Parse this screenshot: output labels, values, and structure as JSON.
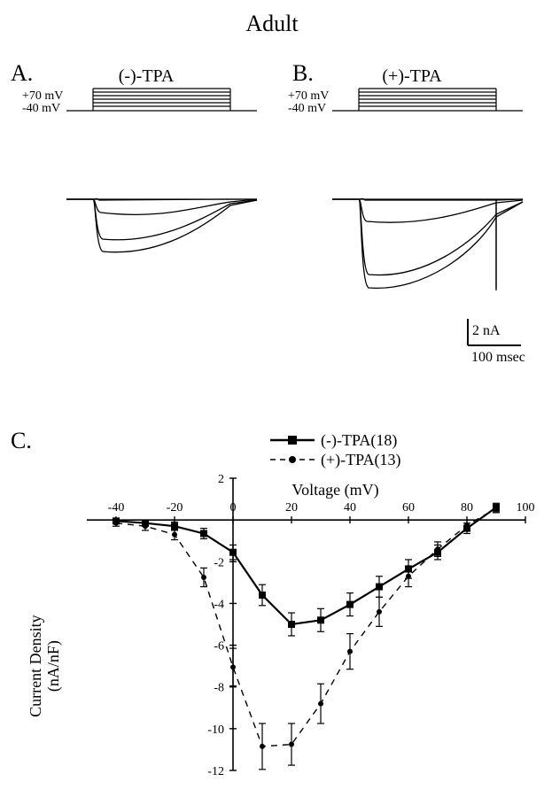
{
  "title": "Adult",
  "panels": {
    "A": {
      "letter": "A.",
      "label": "(-)-TPA",
      "v_hi": "+70 mV",
      "v_lo": "-40 mV"
    },
    "B": {
      "letter": "B.",
      "label": "(+)-TPA",
      "v_hi": "+70 mV",
      "v_lo": "-40 mV"
    },
    "C": {
      "letter": "C."
    }
  },
  "scalebar": {
    "y_label": "2 nA",
    "x_label": "100 msec"
  },
  "legend": {
    "series1": "(-)-TPA(18)",
    "series2": "(+)-TPA(13)"
  },
  "chartC": {
    "type": "line",
    "x_label": "Voltage (mV)",
    "y_label": "Current Density\n(nA/nF)",
    "label_fontsize": 16,
    "x_min": -50,
    "x_max": 100,
    "x_tick_step": 20,
    "y_min": -12,
    "y_max": 2,
    "y_tick_step": 2,
    "background_color": "#ffffff",
    "axis_color": "#000000",
    "series": [
      {
        "name": "(-)-TPA(18)",
        "color": "#000000",
        "marker": "square",
        "marker_size": 8,
        "line_style": "solid",
        "line_width": 2.2,
        "points": [
          [
            -40,
            -0.05
          ],
          [
            -30,
            -0.15
          ],
          [
            -20,
            -0.3
          ],
          [
            -10,
            -0.65
          ],
          [
            0,
            -1.55
          ],
          [
            10,
            -3.6
          ],
          [
            20,
            -5.0
          ],
          [
            30,
            -4.8
          ],
          [
            40,
            -4.05
          ],
          [
            50,
            -3.2
          ],
          [
            60,
            -2.35
          ],
          [
            70,
            -1.55
          ],
          [
            80,
            -0.4
          ],
          [
            90,
            0.6
          ]
        ],
        "errors": {
          "-40": 0.1,
          "-30": 0.15,
          "-20": 0.2,
          "-10": 0.25,
          "0": 0.35,
          "10": 0.5,
          "20": 0.55,
          "30": 0.55,
          "40": 0.55,
          "50": 0.5,
          "60": 0.45,
          "70": 0.35,
          "80": 0.25,
          "90": 0.2
        }
      },
      {
        "name": "(+)-TPA(13)",
        "color": "#000000",
        "marker": "circle",
        "marker_size": 6,
        "line_style": "dashed",
        "line_width": 1.4,
        "points": [
          [
            -40,
            -0.15
          ],
          [
            -30,
            -0.3
          ],
          [
            -20,
            -0.7
          ],
          [
            -10,
            -2.75
          ],
          [
            0,
            -7.05
          ],
          [
            10,
            -10.85
          ],
          [
            20,
            -10.75
          ],
          [
            30,
            -8.8
          ],
          [
            40,
            -6.3
          ],
          [
            50,
            -4.4
          ],
          [
            60,
            -2.7
          ],
          [
            70,
            -1.4
          ],
          [
            80,
            -0.25
          ],
          [
            90,
            0.55
          ]
        ],
        "errors": {
          "-40": 0.15,
          "-30": 0.2,
          "-20": 0.25,
          "-10": 0.45,
          "0": 0.9,
          "10": 1.1,
          "20": 1.0,
          "30": 0.95,
          "40": 0.85,
          "50": 0.7,
          "60": 0.5,
          "70": 0.35,
          "80": 0.25,
          "90": 0.2
        }
      }
    ]
  }
}
